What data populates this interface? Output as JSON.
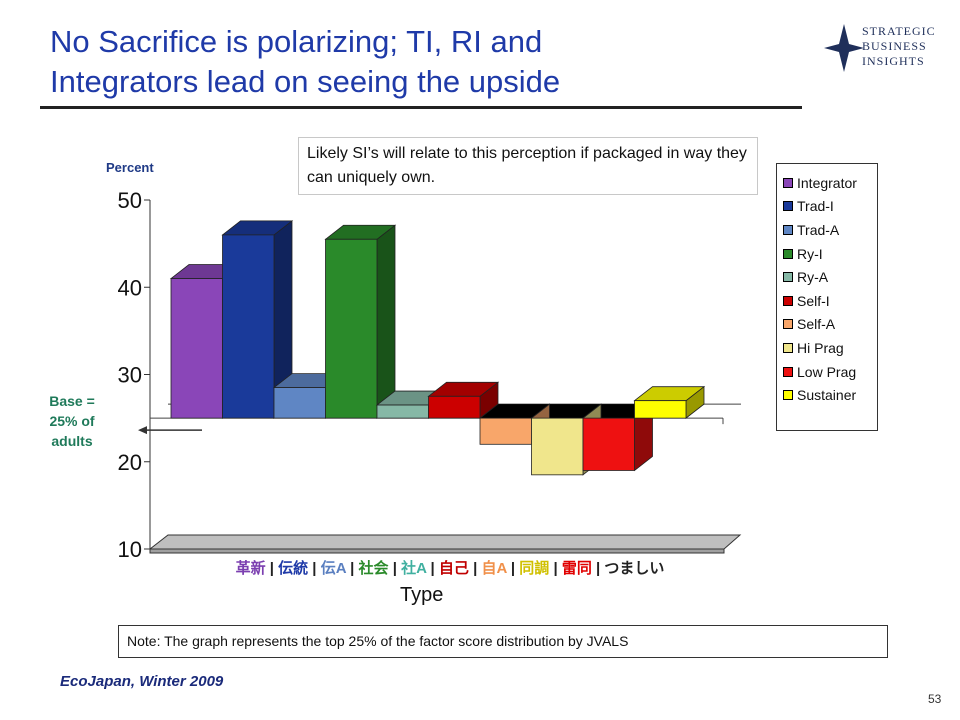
{
  "slide": {
    "title_line1": "No Sacrifice is polarizing; TI, RI and",
    "title_line2": "Integrators lead on seeing the upside",
    "callout": "Likely SI’s will relate to this perception if packaged in way they can uniquely own.",
    "base_label_1": "Base =",
    "base_label_2": "25% of",
    "base_label_3": "adults",
    "note": "Note:  The graph represents the top 25% of the factor score distribution by JVALS",
    "source": "EcoJapan, Winter 2009",
    "page_number": "53",
    "logo": {
      "line1": "STRATEGIC",
      "line2": "BUSINESS",
      "line3": "INSIGHTS",
      "icon": "star-diamond-icon",
      "color": "#1f2f5a"
    }
  },
  "chart_data": {
    "type": "bar",
    "title": "",
    "ylabel": "Percent",
    "xlabel": "Type",
    "ylim": [
      10,
      50
    ],
    "yticks": [
      "10",
      "20",
      "30",
      "40",
      "50"
    ],
    "baseline": 25,
    "grid": false,
    "legend_position": "right",
    "x_category_labels": [
      {
        "text": "革新",
        "color": "#7b3fb0"
      },
      {
        "text": "伝統",
        "color": "#1f3aa8"
      },
      {
        "text": "伝A",
        "color": "#5a7fc0"
      },
      {
        "text": "社会",
        "color": "#2a8a2a"
      },
      {
        "text": "社A",
        "color": "#40b0a0"
      },
      {
        "text": "自己",
        "color": "#c00000"
      },
      {
        "text": "自A",
        "color": "#f0904a"
      },
      {
        "text": "同調",
        "color": "#d0c000"
      },
      {
        "text": "雷同",
        "color": "#e00000"
      },
      {
        "text": "つましい",
        "color": "#222222"
      }
    ],
    "separator": " | ",
    "series": [
      {
        "name": "Integrator",
        "value": 41,
        "color": "#8a46b8"
      },
      {
        "name": "Trad-I",
        "value": 46,
        "color": "#1a3a9a"
      },
      {
        "name": "Trad-A",
        "value": 28.5,
        "color": "#5f86c4"
      },
      {
        "name": "Ry-I",
        "value": 45.5,
        "color": "#2a8a2a"
      },
      {
        "name": "Ry-A",
        "value": 26.5,
        "color": "#86b8a6"
      },
      {
        "name": "Self-I",
        "value": 27.5,
        "color": "#cc0000"
      },
      {
        "name": "Self-A",
        "value": 22,
        "color": "#f8a66a"
      },
      {
        "name": "Hi Prag",
        "value": 18.5,
        "color": "#f0e68c"
      },
      {
        "name": "Low Prag",
        "value": 19,
        "color": "#ee1111"
      },
      {
        "name": "Sustainer",
        "value": 27,
        "color": "#ffff00"
      }
    ]
  }
}
